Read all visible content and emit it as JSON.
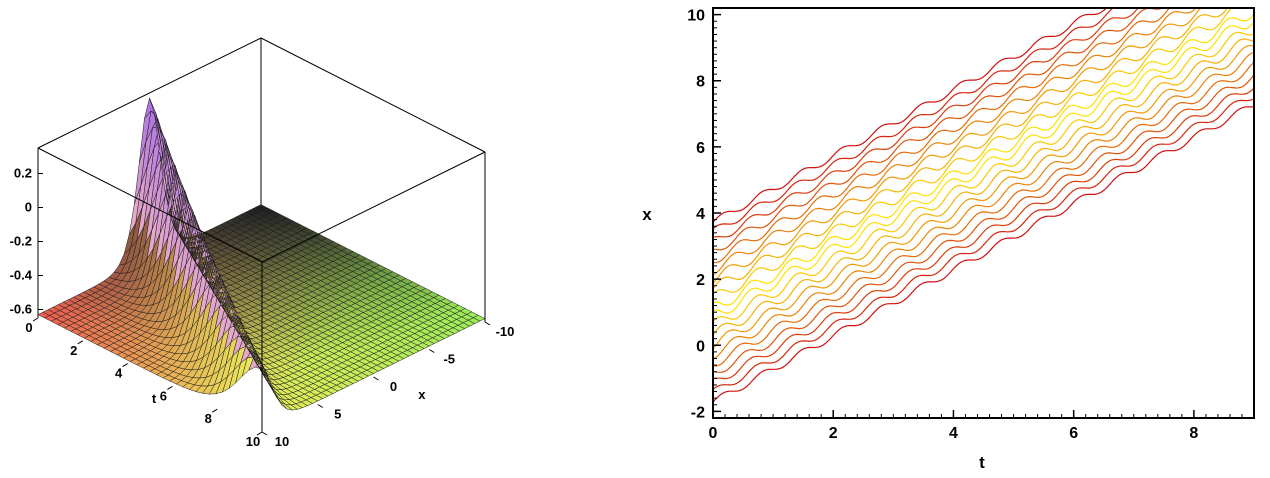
{
  "chart_data": [
    {
      "type": "surface",
      "axes": {
        "x": {
          "label": "x",
          "range": [
            -10,
            10
          ],
          "ticks": [
            "-10",
            "-5",
            "0",
            "5",
            "10"
          ]
        },
        "t": {
          "label": "t",
          "range": [
            0,
            10
          ],
          "ticks": [
            "0",
            "2",
            "4",
            "6",
            "8",
            "10"
          ]
        },
        "z": {
          "range": [
            -0.65,
            0.35
          ],
          "ticks": [
            "0.2",
            "0",
            "-0.2",
            "-0.4",
            "-0.6"
          ]
        }
      },
      "surface": {
        "description_of_shape": "travelling bright-soliton-like pulse along x = t, peak height about 0.3 at small t, flat plane near -0.6 elsewhere",
        "baseline": -0.63,
        "peak": 0.32,
        "width": 1.3
      },
      "colormap": [
        "#e05050",
        "#e8c060",
        "#7fd050",
        "#303030",
        "#a060e0"
      ]
    },
    {
      "type": "contour",
      "xlabel": "t",
      "ylabel": "x",
      "xlim": [
        0,
        9
      ],
      "ylim": [
        -2.2,
        10.2
      ],
      "xticks": [
        "0",
        "2",
        "4",
        "6",
        "8"
      ],
      "yticks": [
        "-2",
        "0",
        "2",
        "4",
        "6",
        "8",
        "10"
      ],
      "ridge": {
        "offset": 1.0,
        "slope": 1.0
      },
      "levels": 10,
      "half_width": 2.6,
      "colors": {
        "outer": "#d01010",
        "inner": "#ffe000"
      }
    }
  ]
}
